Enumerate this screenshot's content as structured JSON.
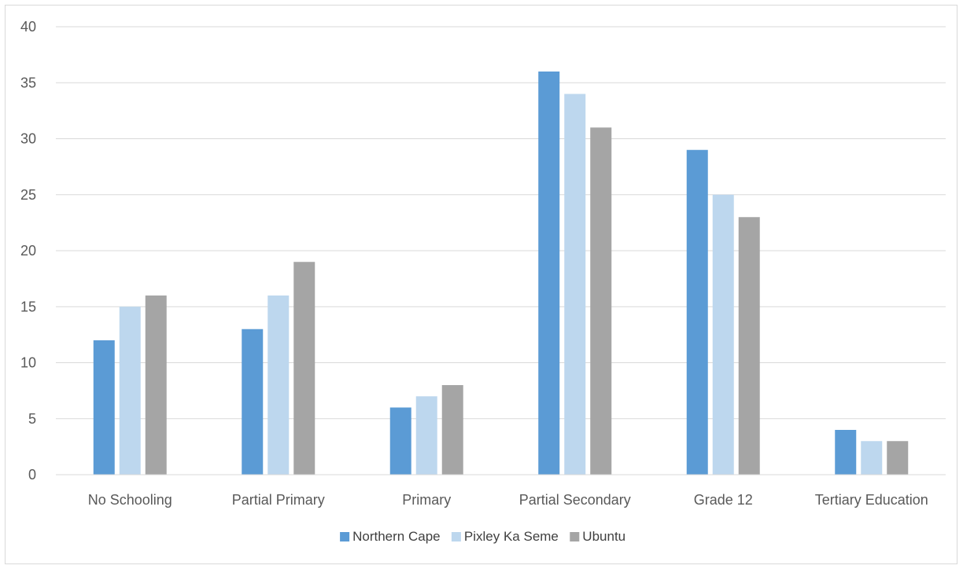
{
  "chart_data": {
    "type": "bar",
    "categories": [
      "No Schooling",
      "Partial Primary",
      "Primary",
      "Partial Secondary",
      "Grade 12",
      "Tertiary Education"
    ],
    "series": [
      {
        "name": "Northern Cape",
        "color": "#5b9bd5",
        "values": [
          12,
          13,
          6,
          36,
          29,
          4
        ]
      },
      {
        "name": "Pixley Ka Seme",
        "color": "#bdd7ee",
        "values": [
          15,
          16,
          7,
          34,
          25,
          3
        ]
      },
      {
        "name": "Ubuntu",
        "color": "#a5a5a5",
        "values": [
          16,
          19,
          8,
          31,
          23,
          3
        ]
      }
    ],
    "yticks": [
      "0",
      "5",
      "10",
      "15",
      "20",
      "25",
      "30",
      "35",
      "40"
    ],
    "ylim": [
      0,
      40
    ],
    "grid": true,
    "legend": "bottom-center",
    "title": "",
    "xlabel": "",
    "ylabel": ""
  }
}
